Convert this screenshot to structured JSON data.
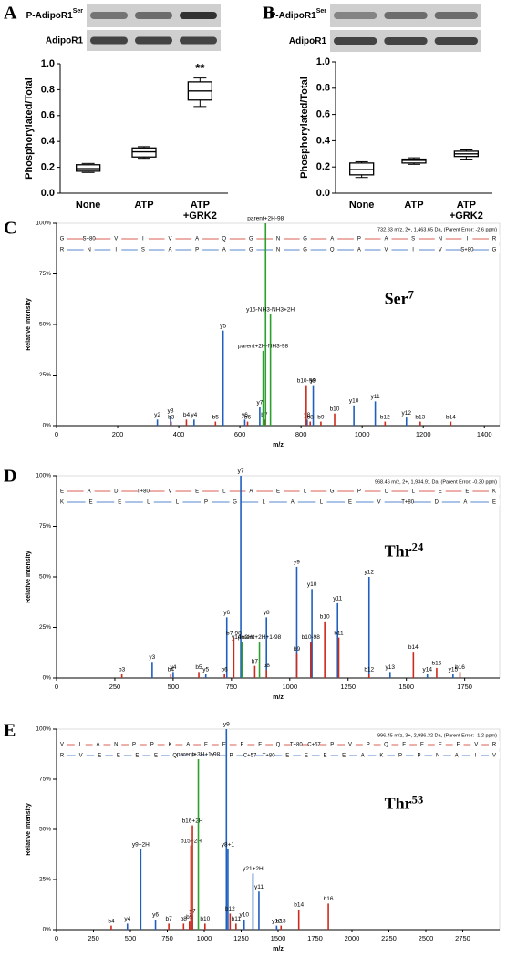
{
  "chart_data": [
    {
      "type": "box",
      "panel_label": "A",
      "blot_labels": [
        {
          "text": "P-AdipoR1",
          "sup": "Ser"
        },
        {
          "text": "AdipoR1"
        }
      ],
      "ylabel": "Phosphorylated/Total",
      "categories": [
        "None",
        "ATP",
        "ATP +GRK2"
      ],
      "boxes": [
        {
          "min": 0.16,
          "q1": 0.17,
          "median": 0.19,
          "q3": 0.22,
          "max": 0.23
        },
        {
          "min": 0.27,
          "q1": 0.28,
          "median": 0.32,
          "q3": 0.35,
          "max": 0.36
        },
        {
          "min": 0.67,
          "q1": 0.72,
          "median": 0.79,
          "q3": 0.86,
          "max": 0.89
        }
      ],
      "annotation": "**",
      "ylim": [
        0,
        1
      ],
      "yticks": [
        {
          "value": 0,
          "label": "0.0"
        },
        0.2,
        0.4,
        0.6,
        0.8,
        {
          "value": 1,
          "label": "1.0"
        }
      ]
    },
    {
      "type": "box",
      "panel_label": "B",
      "blot_labels": [
        {
          "text": "P-AdipoR1",
          "sup": "Ser"
        },
        {
          "text": "AdipoR1"
        }
      ],
      "ylabel": "Phosphorylated/Total",
      "categories": [
        "None",
        "ATP",
        "ATP +GRK2"
      ],
      "boxes": [
        {
          "min": 0.12,
          "q1": 0.14,
          "median": 0.18,
          "q3": 0.23,
          "max": 0.24
        },
        {
          "min": 0.22,
          "q1": 0.23,
          "median": 0.25,
          "q3": 0.26,
          "max": 0.27
        },
        {
          "min": 0.26,
          "q1": 0.28,
          "median": 0.3,
          "q3": 0.32,
          "max": 0.33
        }
      ],
      "ylim": [
        0,
        1
      ],
      "yticks": [
        {
          "value": 0,
          "label": "0.0"
        },
        0.2,
        0.4,
        0.6,
        0.8,
        {
          "value": 1,
          "label": "1.0"
        }
      ]
    },
    {
      "type": "spectrum",
      "panel_label": "C",
      "header": "732.83 m/z, 2+, 1,463.65 Da, (Parent Error: -2.6 ppm)",
      "ladders": [
        {
          "tokens": [
            "G",
            "S+80",
            "V",
            "I",
            "V",
            "A",
            "Q",
            "G",
            "N",
            "G",
            "A",
            "P",
            "A",
            "S",
            "N",
            "I",
            "R"
          ],
          "color": "#cc2a1a"
        },
        {
          "tokens": [
            "R",
            "N",
            "I",
            "S",
            "A",
            "P",
            "A",
            "G",
            "N",
            "G",
            "Q",
            "A",
            "V",
            "I",
            "V",
            "S+80",
            "G"
          ],
          "color": "#1f5fbf"
        }
      ],
      "annotation": {
        "text": "Ser",
        "sup": "7"
      },
      "xlabel": "m/z",
      "ylabel": "Relative Intensity",
      "xlim": [
        0,
        1450
      ],
      "xticks": [
        0,
        200,
        400,
        600,
        800,
        1000,
        1200,
        1400
      ],
      "ylim": [
        0,
        100
      ],
      "yticks": [
        {
          "value": 0,
          "label": "0%"
        },
        {
          "value": 25,
          "label": "25%"
        },
        {
          "value": 50,
          "label": "50%"
        },
        {
          "value": 75,
          "label": "75%"
        },
        {
          "value": 100,
          "label": "100%"
        }
      ],
      "series": [
        {
          "color": "#1f5fbf",
          "x": [
            330,
            373,
            450,
            545,
            616,
            665,
            820,
            840,
            973,
            1043,
            1145
          ],
          "values": [
            3,
            5,
            3,
            47,
            3,
            9,
            3,
            20,
            10,
            12,
            4
          ],
          "labels": [
            "y2",
            "y3",
            "y4",
            "y5",
            "y6",
            "y7",
            "y8",
            "y9",
            "y10",
            "y11",
            "y12"
          ]
        },
        {
          "color": "#cc2a1a",
          "x": [
            375,
            425,
            520,
            625,
            680,
            817,
            830,
            865,
            910,
            1075,
            1190,
            1290
          ],
          "values": [
            2,
            3,
            2,
            2,
            3,
            20,
            2,
            2,
            6,
            2,
            2,
            2
          ],
          "labels": [
            "b3",
            "b4",
            "b5",
            "b6",
            "b7",
            "b10-98",
            "b8",
            "b9",
            "b10",
            "b12",
            "b13",
            "b14"
          ]
        },
        {
          "color": "#2ca02c",
          "x": [
            676,
            684,
            700
          ],
          "values": [
            37,
            100,
            55
          ],
          "labels": [
            "parent+2H-NH3-98",
            "parent+2H-98",
            "y15-NH3-NH3+2H"
          ]
        }
      ]
    },
    {
      "type": "spectrum",
      "panel_label": "D",
      "header": "968.46 m/z, 2+, 1,934.91 Da, (Parent Error: -0.30 ppm)",
      "ladders": [
        {
          "tokens": [
            "E",
            "A",
            "D",
            "T+80",
            "V",
            "E",
            "L",
            "A",
            "E",
            "L",
            "G",
            "P",
            "L",
            "L",
            "E",
            "E",
            "K"
          ],
          "color": "#cc2a1a"
        },
        {
          "tokens": [
            "K",
            "E",
            "E",
            "L",
            "L",
            "P",
            "G",
            "L",
            "A",
            "L",
            "E",
            "V",
            "T+80",
            "D",
            "A",
            "E"
          ],
          "color": "#1f5fbf"
        }
      ],
      "annotation": {
        "text": "Thr",
        "sup": "24"
      },
      "xlabel": "m/z",
      "ylabel": "Relative Intensity",
      "xlim": [
        0,
        1900
      ],
      "xticks": [
        0,
        250,
        500,
        750,
        1000,
        1250,
        1500,
        1750
      ],
      "ylim": [
        0,
        100
      ],
      "yticks": [
        {
          "value": 0,
          "label": "0%"
        },
        {
          "value": 25,
          "label": "25%"
        },
        {
          "value": 50,
          "label": "50%"
        },
        {
          "value": 75,
          "label": "75%"
        },
        {
          "value": 100,
          "label": "100%"
        }
      ],
      "series": [
        {
          "color": "#1f5fbf",
          "x": [
            410,
            500,
            640,
            730,
            790,
            900,
            1030,
            1095,
            1205,
            1340,
            1430,
            1590,
            1700
          ],
          "values": [
            8,
            3,
            2,
            30,
            100,
            30,
            55,
            44,
            37,
            50,
            3,
            2,
            2
          ],
          "labels": [
            "y3",
            "y4",
            "y5",
            "y6",
            "y7",
            "y8",
            "y9",
            "y10",
            "y11",
            "y12",
            "y13",
            "y14",
            "y15"
          ]
        },
        {
          "color": "#cc2a1a",
          "x": [
            280,
            490,
            610,
            720,
            760,
            850,
            900,
            1030,
            1090,
            1150,
            1210,
            1340,
            1530,
            1630,
            1730
          ],
          "values": [
            2,
            2,
            3,
            2,
            20,
            6,
            4,
            12,
            18,
            28,
            20,
            2,
            13,
            5,
            3
          ],
          "labels": [
            "b3",
            "b4",
            "b5",
            "b6",
            "b7-98",
            "b7",
            "b8",
            "b9",
            "b10-98",
            "b10",
            "b11",
            "b12",
            "b14",
            "b15",
            "b16"
          ]
        },
        {
          "color": "#2ca02c",
          "x": [
            795,
            870
          ],
          "values": [
            18,
            18
          ],
          "labels": [
            "y14+2H",
            "parent+2H+1-98"
          ]
        }
      ]
    },
    {
      "type": "spectrum",
      "panel_label": "E",
      "header": "996.45 m/z, 3+, 2,986.32 Da, (Parent Error: -1.2 ppm)",
      "ladders": [
        {
          "tokens": [
            "V",
            "I",
            "A",
            "N",
            "P",
            "P",
            "K",
            "A",
            "E",
            "E",
            "E",
            "E",
            "Q",
            "T+80",
            "C+57",
            "P",
            "V",
            "P",
            "Q",
            "E",
            "E",
            "E",
            "E",
            "V",
            "R"
          ],
          "color": "#cc2a1a"
        },
        {
          "tokens": [
            "R",
            "V",
            "E",
            "E",
            "E",
            "E",
            "Q",
            "P",
            "V",
            "P",
            "C+57",
            "T+80",
            "E",
            "E",
            "E",
            "E",
            "A",
            "K",
            "P",
            "P",
            "N",
            "A",
            "I",
            "V"
          ],
          "color": "#1f5fbf"
        }
      ],
      "annotation": {
        "text": "Thr",
        "sup": "53"
      },
      "xlabel": "m/z",
      "ylabel": "Relative Intensity",
      "xlim": [
        0,
        3000
      ],
      "xticks": [
        0,
        250,
        500,
        750,
        1000,
        1250,
        1500,
        1750,
        2000,
        2250,
        2500,
        2750
      ],
      "ylim": [
        0,
        100
      ],
      "yticks": [
        {
          "value": 0,
          "label": "0%"
        },
        {
          "value": 25,
          "label": "25%"
        },
        {
          "value": 50,
          "label": "50%"
        },
        {
          "value": 75,
          "label": "75%"
        },
        {
          "value": 100,
          "label": "100%"
        }
      ],
      "series": [
        {
          "color": "#1f5fbf",
          "x": [
            480,
            570,
            670,
            920,
            1150,
            1160,
            1270,
            1330,
            1370,
            1490
          ],
          "values": [
            3,
            40,
            5,
            7,
            100,
            40,
            5,
            28,
            19,
            2
          ],
          "labels": [
            "y4",
            "y9+2H",
            "y6",
            "y7",
            "y9",
            "y8+1",
            "y10",
            "y21+2H",
            "y11",
            "y12"
          ]
        },
        {
          "color": "#cc2a1a",
          "x": [
            370,
            760,
            860,
            900,
            910,
            920,
            1005,
            1175,
            1215,
            1520,
            1640,
            1840
          ],
          "values": [
            2,
            3,
            3,
            4,
            42,
            52,
            3,
            8,
            3,
            2,
            10,
            13
          ],
          "labels": [
            "b4",
            "b7",
            "b8",
            "b9",
            "b15+2H",
            "b16+2H",
            "b10",
            "b12",
            "b11",
            "b13",
            "b14",
            "b16"
          ]
        },
        {
          "color": "#2ca02c",
          "x": [
            960
          ],
          "values": [
            85
          ],
          "labels": [
            "parent+3H+1-98"
          ]
        }
      ]
    }
  ]
}
